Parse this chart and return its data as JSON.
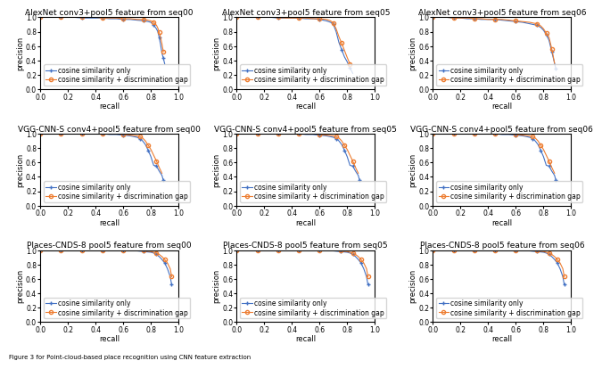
{
  "titles": [
    [
      "AlexNet conv3+pool5 feature from seq00",
      "AlexNet conv3+pool5 feature from seq05",
      "AlexNet conv3+pool5 feature from seq06"
    ],
    [
      "VGG-CNN-S conv4+pool5 feature from seq00",
      "VGG-CNN-S conv4+pool5 feature from seq05",
      "VGG-CNN-S conv4+pool5 feature from seq06"
    ],
    [
      "Places-CNDS-8 pool5 feature from seq00",
      "Places-CNDS-8 pool5 feature from seq05",
      "Places-CNDS-8 pool5 feature from seq06"
    ]
  ],
  "line1_color": "#4472C4",
  "line2_color": "#ED7D31",
  "legend1": "cosine similarity only",
  "legend2": "cosine similarity + discrimination gap",
  "xlabel": "recall",
  "ylabel": "precision",
  "curves": {
    "alexnet_seq00": {
      "cosine": {
        "x": [
          0.0,
          0.05,
          0.1,
          0.15,
          0.2,
          0.25,
          0.3,
          0.35,
          0.4,
          0.45,
          0.5,
          0.55,
          0.6,
          0.65,
          0.7,
          0.75,
          0.78,
          0.8,
          0.82,
          0.84,
          0.85,
          0.86,
          0.87,
          0.88,
          0.89,
          0.9
        ],
        "y": [
          1.0,
          1.0,
          1.0,
          1.0,
          1.0,
          1.0,
          0.99,
          0.99,
          0.99,
          0.99,
          0.98,
          0.98,
          0.97,
          0.97,
          0.96,
          0.95,
          0.94,
          0.93,
          0.89,
          0.84,
          0.8,
          0.72,
          0.62,
          0.5,
          0.43,
          0.35
        ]
      },
      "combined": {
        "x": [
          0.0,
          0.05,
          0.1,
          0.15,
          0.2,
          0.25,
          0.3,
          0.35,
          0.4,
          0.45,
          0.5,
          0.55,
          0.6,
          0.65,
          0.7,
          0.75,
          0.78,
          0.8,
          0.82,
          0.84,
          0.85,
          0.86,
          0.87,
          0.88,
          0.89
        ],
        "y": [
          1.0,
          1.0,
          1.0,
          1.0,
          1.0,
          1.0,
          1.0,
          1.0,
          1.0,
          0.99,
          0.99,
          0.99,
          0.98,
          0.98,
          0.97,
          0.97,
          0.96,
          0.95,
          0.93,
          0.89,
          0.85,
          0.79,
          0.72,
          0.63,
          0.52
        ]
      }
    },
    "alexnet_seq05": {
      "cosine": {
        "x": [
          0.0,
          0.05,
          0.1,
          0.15,
          0.2,
          0.25,
          0.3,
          0.35,
          0.4,
          0.45,
          0.5,
          0.55,
          0.6,
          0.65,
          0.68,
          0.7,
          0.72,
          0.74,
          0.76,
          0.78,
          0.8,
          0.82,
          0.84
        ],
        "y": [
          1.0,
          1.0,
          1.0,
          1.0,
          1.0,
          1.0,
          0.99,
          0.99,
          0.99,
          0.99,
          0.98,
          0.98,
          0.97,
          0.95,
          0.93,
          0.9,
          0.8,
          0.65,
          0.55,
          0.45,
          0.38,
          0.3,
          0.22
        ]
      },
      "combined": {
        "x": [
          0.0,
          0.05,
          0.1,
          0.15,
          0.2,
          0.25,
          0.3,
          0.35,
          0.4,
          0.45,
          0.5,
          0.55,
          0.6,
          0.65,
          0.68,
          0.7,
          0.72,
          0.74,
          0.76,
          0.78,
          0.8,
          0.82
        ],
        "y": [
          1.0,
          1.0,
          1.0,
          1.0,
          1.0,
          1.0,
          1.0,
          0.99,
          0.99,
          0.99,
          0.99,
          0.98,
          0.98,
          0.97,
          0.95,
          0.92,
          0.84,
          0.73,
          0.64,
          0.54,
          0.44,
          0.35
        ]
      }
    },
    "alexnet_seq06": {
      "cosine": {
        "x": [
          0.0,
          0.05,
          0.1,
          0.15,
          0.2,
          0.25,
          0.3,
          0.35,
          0.4,
          0.45,
          0.5,
          0.55,
          0.6,
          0.65,
          0.7,
          0.75,
          0.78,
          0.8,
          0.82,
          0.84,
          0.85,
          0.86,
          0.87,
          0.88,
          0.89
        ],
        "y": [
          1.0,
          1.0,
          1.0,
          0.99,
          0.99,
          0.98,
          0.98,
          0.97,
          0.97,
          0.97,
          0.96,
          0.95,
          0.94,
          0.93,
          0.91,
          0.89,
          0.86,
          0.82,
          0.76,
          0.68,
          0.6,
          0.52,
          0.44,
          0.36,
          0.28
        ]
      },
      "combined": {
        "x": [
          0.0,
          0.05,
          0.1,
          0.15,
          0.2,
          0.25,
          0.3,
          0.35,
          0.4,
          0.45,
          0.5,
          0.55,
          0.6,
          0.65,
          0.7,
          0.75,
          0.78,
          0.8,
          0.82,
          0.84,
          0.85,
          0.86,
          0.87,
          0.88
        ],
        "y": [
          1.0,
          1.0,
          1.0,
          0.99,
          0.99,
          0.99,
          0.98,
          0.98,
          0.97,
          0.97,
          0.97,
          0.96,
          0.95,
          0.94,
          0.93,
          0.91,
          0.88,
          0.84,
          0.78,
          0.72,
          0.64,
          0.56,
          0.46,
          0.36
        ]
      }
    },
    "vgg_seq00": {
      "cosine": {
        "x": [
          0.0,
          0.05,
          0.1,
          0.15,
          0.2,
          0.25,
          0.3,
          0.35,
          0.4,
          0.45,
          0.5,
          0.55,
          0.6,
          0.65,
          0.7,
          0.72,
          0.74,
          0.76,
          0.78,
          0.8,
          0.82,
          0.84,
          0.86,
          0.88,
          0.89
        ],
        "y": [
          1.0,
          1.0,
          1.0,
          1.0,
          1.0,
          1.0,
          1.0,
          1.0,
          1.0,
          1.0,
          0.99,
          0.99,
          0.98,
          0.97,
          0.95,
          0.93,
          0.9,
          0.85,
          0.77,
          0.68,
          0.56,
          0.55,
          0.48,
          0.42,
          0.35
        ]
      },
      "combined": {
        "x": [
          0.0,
          0.05,
          0.1,
          0.15,
          0.2,
          0.25,
          0.3,
          0.35,
          0.4,
          0.45,
          0.5,
          0.55,
          0.6,
          0.65,
          0.7,
          0.72,
          0.74,
          0.76,
          0.78,
          0.8,
          0.82,
          0.84,
          0.86,
          0.88
        ],
        "y": [
          1.0,
          1.0,
          1.0,
          1.0,
          1.0,
          1.0,
          1.0,
          1.0,
          1.0,
          1.0,
          1.0,
          1.0,
          0.99,
          0.98,
          0.97,
          0.96,
          0.94,
          0.9,
          0.84,
          0.78,
          0.7,
          0.62,
          0.53,
          0.45
        ]
      }
    },
    "vgg_seq05": {
      "cosine": {
        "x": [
          0.0,
          0.05,
          0.1,
          0.15,
          0.2,
          0.25,
          0.3,
          0.35,
          0.4,
          0.45,
          0.5,
          0.55,
          0.6,
          0.65,
          0.7,
          0.72,
          0.74,
          0.76,
          0.78,
          0.8,
          0.82,
          0.84,
          0.86,
          0.88,
          0.89
        ],
        "y": [
          1.0,
          1.0,
          1.0,
          1.0,
          1.0,
          1.0,
          1.0,
          1.0,
          1.0,
          1.0,
          0.99,
          0.99,
          0.98,
          0.97,
          0.95,
          0.93,
          0.9,
          0.85,
          0.77,
          0.68,
          0.56,
          0.55,
          0.48,
          0.42,
          0.35
        ]
      },
      "combined": {
        "x": [
          0.0,
          0.05,
          0.1,
          0.15,
          0.2,
          0.25,
          0.3,
          0.35,
          0.4,
          0.45,
          0.5,
          0.55,
          0.6,
          0.65,
          0.7,
          0.72,
          0.74,
          0.76,
          0.78,
          0.8,
          0.82,
          0.84,
          0.86,
          0.88
        ],
        "y": [
          1.0,
          1.0,
          1.0,
          1.0,
          1.0,
          1.0,
          1.0,
          1.0,
          1.0,
          1.0,
          1.0,
          1.0,
          0.99,
          0.98,
          0.97,
          0.96,
          0.94,
          0.9,
          0.84,
          0.78,
          0.7,
          0.62,
          0.53,
          0.45
        ]
      }
    },
    "vgg_seq06": {
      "cosine": {
        "x": [
          0.0,
          0.05,
          0.1,
          0.15,
          0.2,
          0.25,
          0.3,
          0.35,
          0.4,
          0.45,
          0.5,
          0.55,
          0.6,
          0.65,
          0.7,
          0.72,
          0.74,
          0.76,
          0.78,
          0.8,
          0.82,
          0.84,
          0.86,
          0.88,
          0.89
        ],
        "y": [
          1.0,
          1.0,
          1.0,
          1.0,
          1.0,
          1.0,
          1.0,
          1.0,
          1.0,
          1.0,
          0.99,
          0.99,
          0.98,
          0.97,
          0.95,
          0.93,
          0.9,
          0.85,
          0.77,
          0.68,
          0.56,
          0.55,
          0.48,
          0.42,
          0.35
        ]
      },
      "combined": {
        "x": [
          0.0,
          0.05,
          0.1,
          0.15,
          0.2,
          0.25,
          0.3,
          0.35,
          0.4,
          0.45,
          0.5,
          0.55,
          0.6,
          0.65,
          0.7,
          0.72,
          0.74,
          0.76,
          0.78,
          0.8,
          0.82,
          0.84,
          0.86,
          0.88
        ],
        "y": [
          1.0,
          1.0,
          1.0,
          1.0,
          1.0,
          1.0,
          1.0,
          1.0,
          1.0,
          1.0,
          1.0,
          1.0,
          0.99,
          0.98,
          0.97,
          0.96,
          0.94,
          0.9,
          0.84,
          0.78,
          0.7,
          0.62,
          0.53,
          0.45
        ]
      }
    },
    "places_seq00": {
      "cosine": {
        "x": [
          0.0,
          0.05,
          0.1,
          0.15,
          0.2,
          0.25,
          0.3,
          0.35,
          0.4,
          0.45,
          0.5,
          0.55,
          0.6,
          0.65,
          0.7,
          0.75,
          0.8,
          0.82,
          0.84,
          0.86,
          0.88,
          0.9,
          0.92,
          0.94,
          0.95
        ],
        "y": [
          1.0,
          1.0,
          1.0,
          1.0,
          1.0,
          1.0,
          1.0,
          1.0,
          1.0,
          1.0,
          1.0,
          1.0,
          1.0,
          0.99,
          0.99,
          0.98,
          0.97,
          0.96,
          0.94,
          0.91,
          0.87,
          0.82,
          0.74,
          0.63,
          0.52
        ]
      },
      "combined": {
        "x": [
          0.0,
          0.05,
          0.1,
          0.15,
          0.2,
          0.25,
          0.3,
          0.35,
          0.4,
          0.45,
          0.5,
          0.55,
          0.6,
          0.65,
          0.7,
          0.75,
          0.8,
          0.82,
          0.84,
          0.86,
          0.88,
          0.9,
          0.92,
          0.94,
          0.95
        ],
        "y": [
          1.0,
          1.0,
          1.0,
          1.0,
          1.0,
          1.0,
          1.0,
          1.0,
          1.0,
          1.0,
          1.0,
          1.0,
          1.0,
          1.0,
          0.99,
          0.99,
          0.98,
          0.97,
          0.96,
          0.94,
          0.91,
          0.87,
          0.82,
          0.74,
          0.63
        ]
      }
    },
    "places_seq05": {
      "cosine": {
        "x": [
          0.0,
          0.05,
          0.1,
          0.15,
          0.2,
          0.25,
          0.3,
          0.35,
          0.4,
          0.45,
          0.5,
          0.55,
          0.6,
          0.65,
          0.7,
          0.75,
          0.8,
          0.82,
          0.84,
          0.86,
          0.88,
          0.9,
          0.92,
          0.94,
          0.95
        ],
        "y": [
          1.0,
          1.0,
          1.0,
          1.0,
          1.0,
          1.0,
          1.0,
          1.0,
          1.0,
          1.0,
          1.0,
          1.0,
          1.0,
          0.99,
          0.99,
          0.98,
          0.97,
          0.96,
          0.94,
          0.91,
          0.87,
          0.82,
          0.74,
          0.63,
          0.52
        ]
      },
      "combined": {
        "x": [
          0.0,
          0.05,
          0.1,
          0.15,
          0.2,
          0.25,
          0.3,
          0.35,
          0.4,
          0.45,
          0.5,
          0.55,
          0.6,
          0.65,
          0.7,
          0.75,
          0.8,
          0.82,
          0.84,
          0.86,
          0.88,
          0.9,
          0.92,
          0.94,
          0.95
        ],
        "y": [
          1.0,
          1.0,
          1.0,
          1.0,
          1.0,
          1.0,
          1.0,
          1.0,
          1.0,
          1.0,
          1.0,
          1.0,
          1.0,
          1.0,
          0.99,
          0.99,
          0.98,
          0.97,
          0.96,
          0.94,
          0.91,
          0.87,
          0.82,
          0.74,
          0.63
        ]
      }
    },
    "places_seq06": {
      "cosine": {
        "x": [
          0.0,
          0.05,
          0.1,
          0.15,
          0.2,
          0.25,
          0.3,
          0.35,
          0.4,
          0.45,
          0.5,
          0.55,
          0.6,
          0.65,
          0.7,
          0.75,
          0.8,
          0.82,
          0.84,
          0.86,
          0.88,
          0.9,
          0.92,
          0.94,
          0.95
        ],
        "y": [
          1.0,
          1.0,
          1.0,
          1.0,
          1.0,
          1.0,
          1.0,
          1.0,
          1.0,
          1.0,
          1.0,
          1.0,
          1.0,
          0.99,
          0.99,
          0.98,
          0.97,
          0.96,
          0.94,
          0.91,
          0.87,
          0.82,
          0.74,
          0.63,
          0.52
        ]
      },
      "combined": {
        "x": [
          0.0,
          0.05,
          0.1,
          0.15,
          0.2,
          0.25,
          0.3,
          0.35,
          0.4,
          0.45,
          0.5,
          0.55,
          0.6,
          0.65,
          0.7,
          0.75,
          0.8,
          0.82,
          0.84,
          0.86,
          0.88,
          0.9,
          0.92,
          0.94,
          0.95
        ],
        "y": [
          1.0,
          1.0,
          1.0,
          1.0,
          1.0,
          1.0,
          1.0,
          1.0,
          1.0,
          1.0,
          1.0,
          1.0,
          1.0,
          1.0,
          0.99,
          0.99,
          0.98,
          0.97,
          0.96,
          0.94,
          0.91,
          0.87,
          0.82,
          0.74,
          0.63
        ]
      }
    }
  },
  "curve_keys": [
    [
      "alexnet_seq00",
      "alexnet_seq05",
      "alexnet_seq06"
    ],
    [
      "vgg_seq00",
      "vgg_seq05",
      "vgg_seq06"
    ],
    [
      "places_seq00",
      "places_seq05",
      "places_seq06"
    ]
  ],
  "marker1": "+",
  "marker2": "o",
  "markersize1": 3,
  "markersize2": 3,
  "markevery1": 3,
  "markevery2": 3,
  "linewidth": 0.8,
  "title_fontsize": 6.5,
  "label_fontsize": 6,
  "tick_fontsize": 5.5,
  "legend_fontsize": 5.5,
  "figure_caption": "Figure 3 for Point-cloud-based place recognition using CNN feature extraction"
}
